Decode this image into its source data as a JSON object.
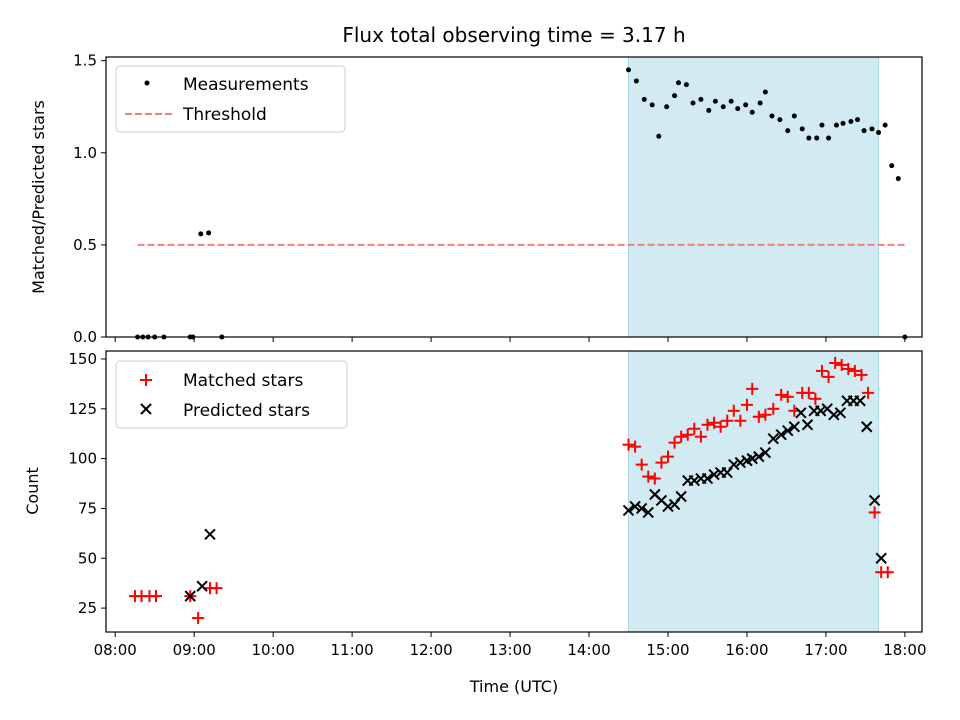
{
  "chart_data": [
    {
      "type": "scatter",
      "title": "Flux total observing time = 3.17 h",
      "xlabel": "",
      "ylabel": "Matched/Predicted stars",
      "xlim": [
        "07:53",
        "18:13"
      ],
      "ylim": [
        0,
        1.52
      ],
      "yticks": [
        "0.0",
        "0.5",
        "1.0",
        "1.5"
      ],
      "ytick_values": [
        0,
        0.5,
        1.0,
        1.5
      ],
      "shaded_region": {
        "start": "14:30",
        "end": "17:40",
        "color": "#add8e6"
      },
      "legend": {
        "location": "top-left",
        "entries": [
          "Measurements",
          "Threshold"
        ]
      },
      "series": [
        {
          "name": "Measurements",
          "marker": "dot",
          "color": "#000000",
          "points": [
            [
              "08:17",
              0
            ],
            [
              "08:21",
              0
            ],
            [
              "08:25",
              0
            ],
            [
              "08:30",
              0
            ],
            [
              "08:37",
              0
            ],
            [
              "08:57",
              0
            ],
            [
              "08:59",
              0
            ],
            [
              "09:05",
              0.56
            ],
            [
              "09:11",
              0.565
            ],
            [
              "09:21",
              0
            ],
            [
              "14:30",
              1.45
            ],
            [
              "14:36",
              1.39
            ],
            [
              "14:42",
              1.29
            ],
            [
              "14:48",
              1.26
            ],
            [
              "14:53",
              1.09
            ],
            [
              "14:59",
              1.25
            ],
            [
              "15:05",
              1.31
            ],
            [
              "15:08",
              1.38
            ],
            [
              "15:14",
              1.37
            ],
            [
              "15:19",
              1.27
            ],
            [
              "15:25",
              1.29
            ],
            [
              "15:31",
              1.23
            ],
            [
              "15:36",
              1.28
            ],
            [
              "15:42",
              1.25
            ],
            [
              "15:48",
              1.28
            ],
            [
              "15:53",
              1.24
            ],
            [
              "15:59",
              1.26
            ],
            [
              "16:04",
              1.22
            ],
            [
              "16:10",
              1.27
            ],
            [
              "16:14",
              1.33
            ],
            [
              "16:19",
              1.2
            ],
            [
              "16:25",
              1.18
            ],
            [
              "16:31",
              1.12
            ],
            [
              "16:36",
              1.2
            ],
            [
              "16:42",
              1.13
            ],
            [
              "16:47",
              1.08
            ],
            [
              "16:53",
              1.08
            ],
            [
              "16:57",
              1.15
            ],
            [
              "17:02",
              1.08
            ],
            [
              "17:08",
              1.15
            ],
            [
              "17:13",
              1.16
            ],
            [
              "17:19",
              1.17
            ],
            [
              "17:24",
              1.18
            ],
            [
              "17:29",
              1.12
            ],
            [
              "17:35",
              1.13
            ],
            [
              "17:40",
              1.11
            ],
            [
              "17:45",
              1.15
            ],
            [
              "17:50",
              0.93
            ],
            [
              "17:55",
              0.86
            ],
            [
              "18:00",
              0
            ]
          ]
        },
        {
          "name": "Threshold",
          "marker": "dashed-line",
          "color": "#f08080",
          "points": [
            [
              "08:17",
              0.5
            ],
            [
              "18:00",
              0.5
            ]
          ]
        }
      ]
    },
    {
      "type": "scatter",
      "title": "",
      "xlabel": "Time (UTC)",
      "ylabel": "Count",
      "xlim": [
        "07:53",
        "18:13"
      ],
      "ylim": [
        13,
        154
      ],
      "yticks": [
        "25",
        "50",
        "75",
        "100",
        "125",
        "150"
      ],
      "ytick_values": [
        25,
        50,
        75,
        100,
        125,
        150
      ],
      "xticks": [
        "08:00",
        "09:00",
        "10:00",
        "11:00",
        "12:00",
        "13:00",
        "14:00",
        "15:00",
        "16:00",
        "17:00",
        "18:00"
      ],
      "shaded_region": {
        "start": "14:30",
        "end": "17:40",
        "color": "#add8e6"
      },
      "legend": {
        "location": "top-left",
        "entries": [
          "Matched stars",
          "Predicted stars"
        ]
      },
      "series": [
        {
          "name": "Matched stars",
          "marker": "plus",
          "color": "#ff0000",
          "points": [
            [
              "08:15",
              31
            ],
            [
              "08:20",
              31
            ],
            [
              "08:26",
              31
            ],
            [
              "08:31",
              31
            ],
            [
              "08:57",
              31
            ],
            [
              "09:03",
              20
            ],
            [
              "09:12",
              35
            ],
            [
              "09:17",
              35
            ],
            [
              "14:30",
              107
            ],
            [
              "14:35",
              106
            ],
            [
              "14:40",
              97
            ],
            [
              "14:45",
              91
            ],
            [
              "14:50",
              90
            ],
            [
              "14:55",
              98
            ],
            [
              "15:00",
              101
            ],
            [
              "15:05",
              108
            ],
            [
              "15:10",
              111
            ],
            [
              "15:15",
              112
            ],
            [
              "15:20",
              115
            ],
            [
              "15:25",
              111
            ],
            [
              "15:30",
              117
            ],
            [
              "15:35",
              118
            ],
            [
              "15:40",
              116
            ],
            [
              "15:45",
              119
            ],
            [
              "15:50",
              124
            ],
            [
              "15:55",
              119
            ],
            [
              "16:00",
              127
            ],
            [
              "16:04",
              135
            ],
            [
              "16:09",
              121
            ],
            [
              "16:14",
              122
            ],
            [
              "16:20",
              125
            ],
            [
              "16:26",
              132
            ],
            [
              "16:31",
              131
            ],
            [
              "16:36",
              124
            ],
            [
              "16:42",
              133
            ],
            [
              "16:47",
              133
            ],
            [
              "16:52",
              130
            ],
            [
              "16:57",
              144
            ],
            [
              "17:02",
              141
            ],
            [
              "17:07",
              148
            ],
            [
              "17:12",
              147
            ],
            [
              "17:17",
              145
            ],
            [
              "17:22",
              144
            ],
            [
              "17:27",
              142
            ],
            [
              "17:32",
              133
            ],
            [
              "17:37",
              73
            ],
            [
              "17:42",
              43
            ],
            [
              "17:47",
              43
            ]
          ]
        },
        {
          "name": "Predicted stars",
          "marker": "x",
          "color": "#000000",
          "points": [
            [
              "08:57",
              31
            ],
            [
              "09:06",
              36
            ],
            [
              "09:12",
              62
            ],
            [
              "14:30",
              74
            ],
            [
              "14:35",
              76
            ],
            [
              "14:40",
              75
            ],
            [
              "14:45",
              73
            ],
            [
              "14:50",
              82
            ],
            [
              "14:55",
              79
            ],
            [
              "15:00",
              76
            ],
            [
              "15:05",
              77
            ],
            [
              "15:10",
              81
            ],
            [
              "15:15",
              89
            ],
            [
              "15:20",
              89
            ],
            [
              "15:25",
              90
            ],
            [
              "15:30",
              90
            ],
            [
              "15:35",
              92
            ],
            [
              "15:40",
              93
            ],
            [
              "15:45",
              93
            ],
            [
              "15:50",
              97
            ],
            [
              "15:55",
              98
            ],
            [
              "16:00",
              99
            ],
            [
              "16:04",
              100
            ],
            [
              "16:09",
              101
            ],
            [
              "16:14",
              103
            ],
            [
              "16:20",
              110
            ],
            [
              "16:26",
              112
            ],
            [
              "16:31",
              114
            ],
            [
              "16:36",
              116
            ],
            [
              "16:41",
              123
            ],
            [
              "16:46",
              117
            ],
            [
              "16:51",
              124
            ],
            [
              "16:56",
              124
            ],
            [
              "17:01",
              125
            ],
            [
              "17:06",
              122
            ],
            [
              "17:11",
              123
            ],
            [
              "17:16",
              129
            ],
            [
              "17:21",
              129
            ],
            [
              "17:26",
              129
            ],
            [
              "17:31",
              116
            ],
            [
              "17:37",
              79
            ],
            [
              "17:42",
              50
            ]
          ]
        }
      ]
    }
  ]
}
